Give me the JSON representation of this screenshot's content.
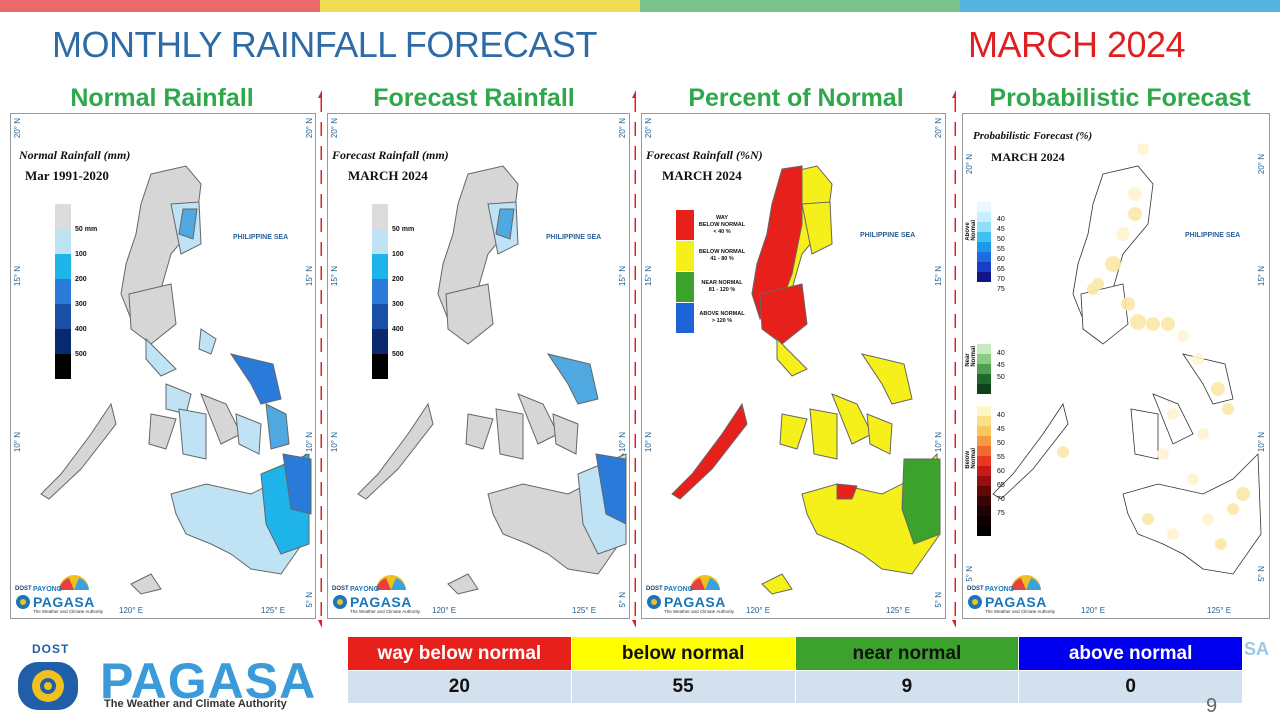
{
  "topbar_colors": [
    "#E96A6A",
    "#F0DC50",
    "#7CC28C",
    "#56B4E0"
  ],
  "header": {
    "title": "MONTHLY RAINFALL FORECAST",
    "month": "MARCH 2024"
  },
  "panels": [
    {
      "title": "Normal Rainfall",
      "caption": "Normal Rainfall (mm)",
      "subcaption": "Mar 1991-2020"
    },
    {
      "title": "Forecast Rainfall",
      "caption": "Forecast Rainfall (mm)",
      "subcaption": "MARCH 2024"
    },
    {
      "title": "Percent of Normal",
      "caption": "Forecast Rainfall (%N)",
      "subcaption": "MARCH 2024"
    },
    {
      "title": "Probabilistic Forecast",
      "caption": "Probabilistic Forecast (%)",
      "subcaption": "MARCH 2024"
    }
  ],
  "map_labels": {
    "sea": "PHILIPPINE SEA",
    "lat_20": "20° N",
    "lat_15": "15° N",
    "lat_10": "10° N",
    "lat_5": "5° N",
    "lon_120": "120° E",
    "lon_125": "125° E"
  },
  "rain_legend": {
    "labels": [
      "50 mm",
      "100",
      "200",
      "300",
      "400",
      "500"
    ],
    "colors": [
      "#DCDCDC",
      "#BFE3F5",
      "#1EB4EA",
      "#2A7BD9",
      "#1A4FA8",
      "#0A2A70",
      "#000000"
    ]
  },
  "category_legend": [
    {
      "label": "WAY BELOW NORMAL < 40 %",
      "l1": "WAY",
      "l2": "BELOW NORMAL",
      "l3": "< 40 %",
      "color": "#E8201C"
    },
    {
      "label": "BELOW NORMAL 41 - 80 %",
      "l1": "BELOW NORMAL",
      "l2": "41 - 80 %",
      "l3": "",
      "color": "#F5F01A"
    },
    {
      "label": "NEAR NORMAL 81 - 120 %",
      "l1": "NEAR NORMAL",
      "l2": "81 - 120 %",
      "l3": "",
      "color": "#3BA32B"
    },
    {
      "label": "ABOVE NORMAL > 120 %",
      "l1": "ABOVE NORMAL",
      "l2": "> 120 %",
      "l3": "",
      "color": "#1E64D8"
    }
  ],
  "prob_legend": {
    "above": {
      "name": "Above Normal",
      "values": [
        "40",
        "45",
        "50",
        "55",
        "60",
        "65",
        "70",
        "75"
      ]
    },
    "near": {
      "name": "Near Normal",
      "values": [
        "40",
        "45",
        "50"
      ]
    },
    "below": {
      "name": "Below Normal",
      "values": [
        "40",
        "45",
        "50",
        "55",
        "60",
        "65",
        "70",
        "75"
      ]
    }
  },
  "logo_small": {
    "dost": "DOST",
    "payong": "PAYONG",
    "name": "PAGASA",
    "tag": "The Weather and Climate Authority"
  },
  "logo_main": {
    "dost": "DOST",
    "name": "PAGASA",
    "tag": "The Weather and Climate Authority"
  },
  "summary": {
    "categories": [
      {
        "label": "way below normal",
        "color": "#E8201C",
        "text_color": "#FFFFFF",
        "count": "20"
      },
      {
        "label": "below normal",
        "color": "#FFFF00",
        "text_color": "#111111",
        "count": "55"
      },
      {
        "label": "near normal",
        "color": "#3BA32B",
        "text_color": "#111111",
        "count": "9"
      },
      {
        "label": "above normal",
        "color": "#0000EE",
        "text_color": "#FFFFFF",
        "count": "0"
      }
    ]
  },
  "watermark": "SA",
  "page_number": "9"
}
